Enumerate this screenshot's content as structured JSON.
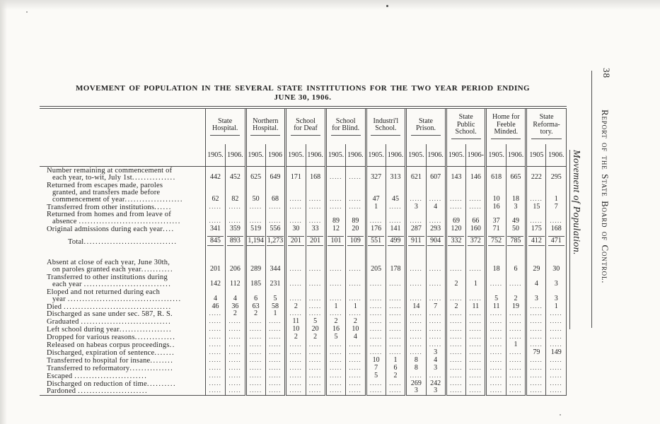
{
  "page": {
    "title_line1": "MOVEMENT OF POPULATION IN THE SEVERAL STATE INSTITUTIONS FOR THE TWO YEAR PERIOD ENDING",
    "title_line2": "JUNE 30, 1906."
  },
  "sidebar": {
    "page_number": "38",
    "running_head": "Report of the State Board of Control.",
    "section_title": "Movement of Population."
  },
  "table": {
    "cell_dots": ".....",
    "institutions": [
      {
        "name": "State\nHospital.",
        "years": [
          "1905.",
          "1906."
        ]
      },
      {
        "name": "Northern\nHospital.",
        "years": [
          "1905.",
          "1906"
        ]
      },
      {
        "name": "School\nfor Deaf",
        "years": [
          "1905.",
          "1906."
        ]
      },
      {
        "name": "School\nfor Blind.",
        "years": [
          "1905.",
          "1906."
        ]
      },
      {
        "name": "Industri'l\nSchool.",
        "years": [
          "1905.",
          "1906."
        ]
      },
      {
        "name": "State\nPrison.",
        "years": [
          "1905.",
          "1906."
        ]
      },
      {
        "name": "State\nPublic\nSchool.",
        "years": [
          "1905.",
          "1906-"
        ]
      },
      {
        "name": "Home for\nFeeble\nMinded.",
        "years": [
          "1905.",
          "1906."
        ]
      },
      {
        "name": "State\nReforma-\ntory.",
        "years": [
          "1905",
          "1906."
        ]
      }
    ],
    "rows": [
      {
        "type": "data",
        "label": "Number remaining at commencement of\neach year, to-wit, July 1st",
        "leader": "...............",
        "values": [
          "442",
          "452",
          "625",
          "649",
          "171",
          "168",
          "",
          "",
          "327",
          "313",
          "621",
          "607",
          "143",
          "146",
          "618",
          "665",
          "222",
          "295"
        ]
      },
      {
        "type": "data",
        "label": "Returned from escapes made, paroles\ngranted, and transfers made before\ncommencement of year",
        "leader": "....................",
        "values": [
          "62",
          "82",
          "50",
          "68",
          "",
          "",
          "",
          "",
          "47",
          "45",
          "",
          "",
          "",
          "",
          "10",
          "18",
          "",
          "1"
        ]
      },
      {
        "type": "data",
        "label": "Transferred from other institutions",
        "leader": "......",
        "values": [
          "",
          "",
          "",
          "",
          "",
          "",
          "",
          "",
          "1",
          "",
          "3",
          "4",
          "",
          "",
          "16",
          "3",
          "15",
          "7"
        ]
      },
      {
        "type": "data",
        "label": "Returned from homes and from leave of\nabsence ",
        "leader": "...................................",
        "values": [
          "",
          "",
          "",
          "",
          "",
          "",
          "89",
          "89",
          "",
          "",
          "",
          "",
          "69",
          "66",
          "37",
          "49",
          "",
          ""
        ]
      },
      {
        "type": "data",
        "label": "Original admissions during each year",
        "leader": "....",
        "values": [
          "341",
          "359",
          "519",
          "556",
          "30",
          "33",
          "12",
          "20",
          "176",
          "141",
          "287",
          "293",
          "120",
          "160",
          "71",
          "50",
          "175",
          "168"
        ]
      },
      {
        "type": "total",
        "label": "Total",
        "leader": "................................",
        "values": [
          "845",
          "893",
          "1,194",
          "1,273",
          "201",
          "201",
          "101",
          "109",
          "551",
          "499",
          "911",
          "904",
          "332",
          "372",
          "752",
          "785",
          "412",
          "471"
        ]
      },
      {
        "type": "spacer"
      },
      {
        "type": "data",
        "label": "Absent at close of each year, June 30th,\non paroles granted each year",
        "leader": "...........",
        "values": [
          "201",
          "206",
          "289",
          "344",
          "",
          "",
          "",
          "",
          "205",
          "178",
          "",
          "",
          "",
          "",
          "18",
          "6",
          "29",
          "30"
        ]
      },
      {
        "type": "data",
        "label": "Transferred to other institutions during\neach year ",
        "leader": "..............................",
        "values": [
          "142",
          "112",
          "185",
          "231",
          "",
          "",
          "",
          "",
          "",
          "",
          "",
          "",
          "2",
          "1",
          "",
          "",
          "4",
          "3"
        ]
      },
      {
        "type": "data",
        "label": "Eloped and not returned during each\nyear ",
        "leader": ".......................................",
        "values": [
          "4",
          "4",
          "6",
          "5",
          "",
          "",
          "",
          "",
          "",
          "",
          "",
          "",
          "",
          "",
          "5",
          "2",
          "3",
          "3"
        ]
      },
      {
        "type": "data",
        "label": "Died ",
        "leader": ".....................................",
        "values": [
          "46",
          "36",
          "63",
          "58",
          "2",
          "",
          "1",
          "1",
          "",
          "",
          "14",
          "7",
          "2",
          "11",
          "11",
          "19",
          "",
          "1"
        ]
      },
      {
        "type": "data",
        "label": "Discharged as sane under sec. 587, R. S.",
        "leader": "",
        "values": [
          "",
          "2",
          "2",
          "1",
          "",
          "",
          "",
          "",
          "",
          "",
          "",
          "",
          "",
          "",
          "",
          "",
          "",
          ""
        ]
      },
      {
        "type": "data",
        "label": "Graduated ",
        "leader": "...............................",
        "values": [
          "",
          "",
          "",
          "",
          "11",
          "5",
          "2",
          "2",
          "",
          "",
          "",
          "",
          "",
          "",
          "",
          "",
          "",
          ""
        ]
      },
      {
        "type": "data",
        "label": "Left school during year",
        "leader": "..................",
        "values": [
          "",
          "",
          "",
          "",
          "10",
          "20",
          "16",
          "10",
          "",
          "",
          "",
          "",
          "",
          "",
          "",
          "",
          "",
          ""
        ]
      },
      {
        "type": "data",
        "label": "Dropped for various reasons",
        "leader": "..............",
        "values": [
          "",
          "",
          "",
          "",
          "2",
          "2",
          "5",
          "4",
          "",
          "",
          "",
          "",
          "",
          "",
          "",
          "",
          "",
          ""
        ]
      },
      {
        "type": "data",
        "label": "Released on habeas corpus proceedings",
        "leader": "..",
        "values": [
          "",
          "",
          "",
          "",
          "",
          "",
          "",
          "",
          "",
          "",
          "",
          "",
          "",
          "",
          "",
          "1",
          "",
          ""
        ]
      },
      {
        "type": "data",
        "label": "Discharged, expiration of sentence",
        "leader": ".......",
        "values": [
          "",
          "",
          "",
          "",
          "",
          "",
          "",
          "",
          "",
          "",
          "",
          "3",
          "",
          "",
          "",
          "",
          "79",
          "149"
        ]
      },
      {
        "type": "data",
        "label": "Transferred to hospital for insane",
        "leader": "........",
        "values": [
          "",
          "",
          "",
          "",
          "",
          "",
          "",
          "",
          "10",
          "1",
          "8",
          "4",
          "",
          "",
          "",
          "",
          "",
          ""
        ]
      },
      {
        "type": "data",
        "label": "Transferred to reformatory",
        "leader": "...............",
        "values": [
          "",
          "",
          "",
          "",
          "",
          "",
          "",
          "",
          "7",
          "6",
          "8",
          "3",
          "",
          "",
          "",
          "",
          "",
          ""
        ]
      },
      {
        "type": "data",
        "label": "Escaped ",
        "leader": ".........................",
        "values": [
          "",
          "",
          "",
          "",
          "",
          "",
          "",
          "",
          "5",
          "2",
          "",
          "",
          "",
          "",
          "",
          "",
          "",
          ""
        ]
      },
      {
        "type": "data",
        "label": "Discharged on reduction of time",
        "leader": "..........",
        "values": [
          "",
          "",
          "",
          "",
          "",
          "",
          "",
          "",
          "",
          "",
          "269",
          "242",
          "",
          "",
          "",
          "",
          "",
          ""
        ]
      },
      {
        "type": "data",
        "label": "Pardoned ",
        "leader": "........................",
        "values": [
          "",
          "",
          "",
          "",
          "",
          "",
          "",
          "",
          "",
          "",
          "3",
          "3",
          "",
          "",
          "",
          "",
          "",
          ""
        ]
      }
    ]
  }
}
